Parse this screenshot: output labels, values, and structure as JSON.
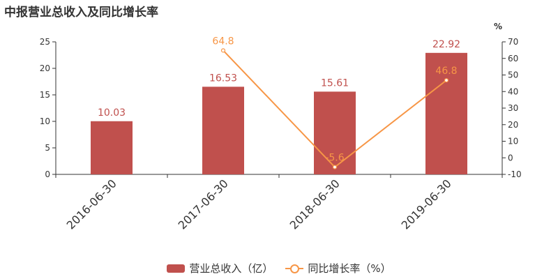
{
  "title": "中报营业总收入及同比增长率",
  "chart_data": {
    "type": "bar",
    "categories": [
      "2016-06-30",
      "2017-06-30",
      "2018-06-30",
      "2019-06-30"
    ],
    "series": [
      {
        "name": "营业总收入（亿）",
        "type": "bar",
        "axis": "left",
        "color": "#c0504d",
        "values": [
          10.03,
          16.53,
          15.61,
          22.92
        ]
      },
      {
        "name": "同比增长率（%）",
        "type": "line",
        "axis": "right",
        "color": "#f79646",
        "values": [
          null,
          64.8,
          -5.6,
          46.8
        ]
      }
    ],
    "y_left": {
      "ylim": [
        0,
        25
      ],
      "ticks": [
        0,
        5,
        10,
        15,
        20,
        25
      ]
    },
    "y_right": {
      "unit": "%",
      "ylim": [
        -10,
        70
      ],
      "ticks": [
        -10,
        0,
        10,
        20,
        30,
        40,
        50,
        60,
        70
      ]
    },
    "bar_labels": [
      "10.03",
      "16.53",
      "15.61",
      "22.92"
    ],
    "line_labels": [
      "",
      "64.8",
      "-5.6",
      "46.8"
    ],
    "legend_position": "bottom",
    "grid": false
  },
  "legend": {
    "bar_label": "营业总收入（亿）",
    "line_label": "同比增长率（%）"
  }
}
